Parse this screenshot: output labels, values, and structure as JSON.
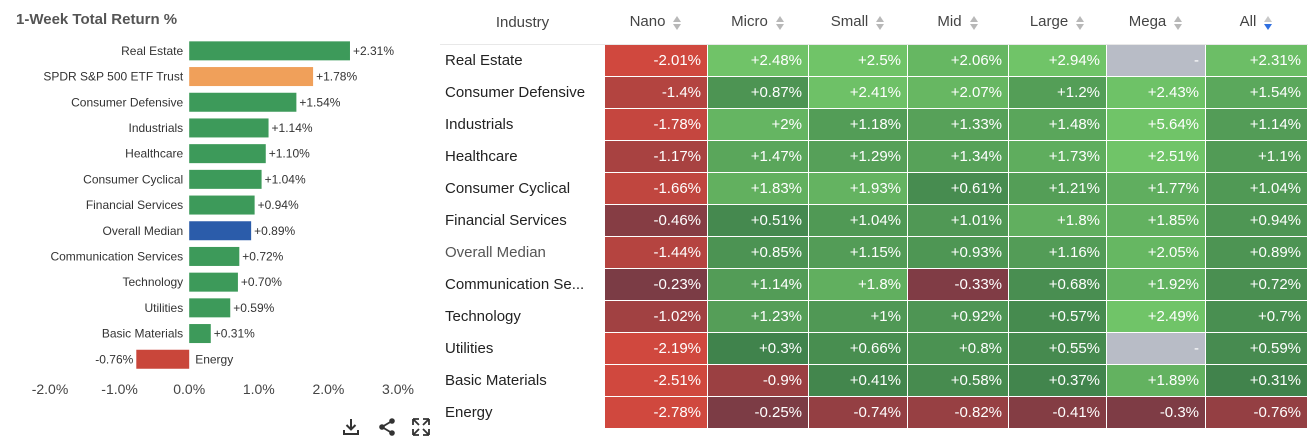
{
  "colors": {
    "bar_default": "#3d9a5a",
    "bar_etf": "#f0a05a",
    "bar_median": "#2b5caa",
    "bar_negative": "#c9463a",
    "missing_cell": "#b8bcc6"
  },
  "chart_data": [
    {
      "type": "bar",
      "orientation": "horizontal",
      "title": "1-Week Total Return %",
      "categories": [
        "Real Estate",
        "SPDR S&P 500 ETF Trust",
        "Consumer Defensive",
        "Industrials",
        "Healthcare",
        "Consumer Cyclical",
        "Financial Services",
        "Overall Median",
        "Communication Services",
        "Technology",
        "Utilities",
        "Basic Materials",
        "Energy"
      ],
      "values": [
        2.31,
        1.78,
        1.54,
        1.14,
        1.1,
        1.04,
        0.94,
        0.89,
        0.72,
        0.7,
        0.59,
        0.31,
        -0.76
      ],
      "value_labels": [
        "+2.31%",
        "+1.78%",
        "+1.54%",
        "+1.14%",
        "+1.10%",
        "+1.04%",
        "+0.94%",
        "+0.89%",
        "+0.72%",
        "+0.70%",
        "+0.59%",
        "+0.31%",
        "-0.76%"
      ],
      "bar_colors": [
        "bar_default",
        "bar_etf",
        "bar_default",
        "bar_default",
        "bar_default",
        "bar_default",
        "bar_default",
        "bar_median",
        "bar_default",
        "bar_default",
        "bar_default",
        "bar_default",
        "bar_negative"
      ],
      "xlim": [
        -2.0,
        3.0
      ],
      "xticks": [
        -2.0,
        -1.0,
        0.0,
        1.0,
        2.0,
        3.0
      ],
      "xtick_labels": [
        "-2.0%",
        "-1.0%",
        "0.0%",
        "1.0%",
        "2.0%",
        "3.0%"
      ],
      "grid": false,
      "legend": "none"
    },
    {
      "type": "heatmap",
      "columns": [
        "Industry",
        "Nano",
        "Micro",
        "Small",
        "Mid",
        "Large",
        "Mega",
        "All"
      ],
      "sorted_column": "All",
      "rows": [
        {
          "name": "Real Estate",
          "values": [
            "-2.01%",
            "+2.48%",
            "+2.5%",
            "+2.06%",
            "+2.94%",
            "-",
            "+2.31%"
          ]
        },
        {
          "name": "Consumer Defensive",
          "values": [
            "-1.4%",
            "+0.87%",
            "+2.41%",
            "+2.07%",
            "+1.2%",
            "+2.43%",
            "+1.54%"
          ]
        },
        {
          "name": "Industrials",
          "values": [
            "-1.78%",
            "+2%",
            "+1.18%",
            "+1.33%",
            "+1.48%",
            "+5.64%",
            "+1.14%"
          ]
        },
        {
          "name": "Healthcare",
          "values": [
            "-1.17%",
            "+1.47%",
            "+1.29%",
            "+1.34%",
            "+1.73%",
            "+2.51%",
            "+1.1%"
          ]
        },
        {
          "name": "Consumer Cyclical",
          "values": [
            "-1.66%",
            "+1.83%",
            "+1.93%",
            "+0.61%",
            "+1.21%",
            "+1.77%",
            "+1.04%"
          ]
        },
        {
          "name": "Financial Services",
          "values": [
            "-0.46%",
            "+0.51%",
            "+1.04%",
            "+1.01%",
            "+1.8%",
            "+1.85%",
            "+0.94%"
          ]
        },
        {
          "name": "Overall Median",
          "values": [
            "-1.44%",
            "+0.85%",
            "+1.15%",
            "+0.93%",
            "+1.16%",
            "+2.05%",
            "+0.89%"
          ]
        },
        {
          "name": "Communication Se...",
          "values": [
            "-0.23%",
            "+1.14%",
            "+1.8%",
            "-0.33%",
            "+0.68%",
            "+1.92%",
            "+0.72%"
          ]
        },
        {
          "name": "Technology",
          "values": [
            "-1.02%",
            "+1.23%",
            "+1%",
            "+0.92%",
            "+0.57%",
            "+2.49%",
            "+0.7%"
          ]
        },
        {
          "name": "Utilities",
          "values": [
            "-2.19%",
            "+0.3%",
            "+0.66%",
            "+0.8%",
            "+0.55%",
            "-",
            "+0.59%"
          ]
        },
        {
          "name": "Basic Materials",
          "values": [
            "-2.51%",
            "-0.9%",
            "+0.41%",
            "+0.58%",
            "+0.37%",
            "+1.89%",
            "+0.31%"
          ]
        },
        {
          "name": "Energy",
          "values": [
            "-2.78%",
            "-0.25%",
            "-0.74%",
            "-0.82%",
            "-0.41%",
            "-0.3%",
            "-0.76%"
          ]
        }
      ]
    }
  ],
  "toolbar": {
    "download_icon": "download-icon",
    "share_icon": "share-icon",
    "expand_icon": "expand-icon"
  }
}
